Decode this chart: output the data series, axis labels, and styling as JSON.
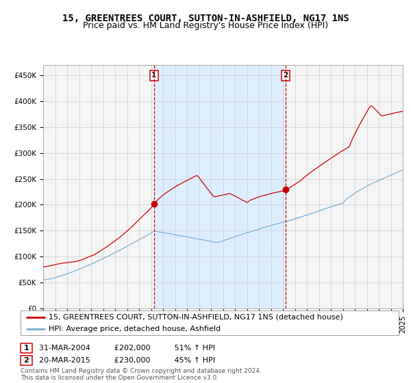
{
  "title": "15, GREENTREES COURT, SUTTON-IN-ASHFIELD, NG17 1NS",
  "subtitle": "Price paid vs. HM Land Registry's House Price Index (HPI)",
  "ylim": [
    0,
    470000
  ],
  "yticks": [
    0,
    50000,
    100000,
    150000,
    200000,
    250000,
    300000,
    350000,
    400000,
    450000
  ],
  "ytick_labels": [
    "£0",
    "£50K",
    "£100K",
    "£150K",
    "£200K",
    "£250K",
    "£300K",
    "£350K",
    "£400K",
    "£450K"
  ],
  "year_start": 1995,
  "year_end": 2025,
  "sale1_year": 2004.25,
  "sale1_price": 202000,
  "sale2_year": 2015.22,
  "sale2_price": 230000,
  "sale1_date": "31-MAR-2004",
  "sale1_amount": "£202,000",
  "sale1_hpi": "51% ↑ HPI",
  "sale2_date": "20-MAR-2015",
  "sale2_amount": "£230,000",
  "sale2_hpi": "45% ↑ HPI",
  "red_line_color": "#cc0000",
  "blue_line_color": "#7aafd4",
  "shading_color": "#ddeeff",
  "vline_color": "#cc0000",
  "background_color": "#f5f5f5",
  "grid_color": "#cccccc",
  "legend_label_red": "15, GREENTREES COURT, SUTTON-IN-ASHFIELD, NG17 1NS (detached house)",
  "legend_label_blue": "HPI: Average price, detached house, Ashfield",
  "footnote": "Contains HM Land Registry data © Crown copyright and database right 2024.\nThis data is licensed under the Open Government Licence v3.0.",
  "title_fontsize": 10,
  "subtitle_fontsize": 9,
  "tick_fontsize": 7.5,
  "legend_fontsize": 8
}
